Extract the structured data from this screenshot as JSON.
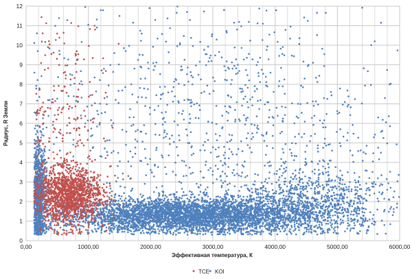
{
  "chart_data": {
    "type": "scatter",
    "title": "",
    "xlabel": "Эффективная температура, К",
    "ylabel": "Радиус, R Земли",
    "xlim": [
      0,
      6000
    ],
    "ylim": [
      0,
      12
    ],
    "x_tick_labels": [
      "0,00",
      "1000,00",
      "2000,00",
      "3000,00",
      "4000,00",
      "5000,00",
      "6000,00"
    ],
    "y_tick_labels": [
      "0",
      "1",
      "2",
      "3",
      "4",
      "5",
      "6",
      "7",
      "8",
      "9",
      "10",
      "11",
      "12"
    ],
    "grid": true,
    "legend_position": "bottom",
    "series": [
      {
        "name": "TCE",
        "color": "#c0504d",
        "sample_points": [
          [
            400,
            2.6
          ],
          [
            550,
            2.2
          ],
          [
            650,
            2.9
          ],
          [
            720,
            2.4
          ],
          [
            800,
            1.9
          ],
          [
            300,
            3.1
          ],
          [
            600,
            3.4
          ],
          [
            900,
            2.0
          ],
          [
            1000,
            1.7
          ],
          [
            450,
            4.2
          ],
          [
            700,
            5.5
          ],
          [
            350,
            6.8
          ],
          [
            800,
            9.5
          ],
          [
            500,
            10.6
          ],
          [
            1100,
            11.0
          ],
          [
            1200,
            1.5
          ],
          [
            1400,
            1.3
          ],
          [
            650,
            1.4
          ]
        ],
        "distribution": [
          {
            "x_mean": 700,
            "x_sd": 260,
            "y_mean": 2.3,
            "y_sd": 0.7,
            "n": 1400
          },
          {
            "x_mean": 650,
            "x_sd": 320,
            "y_mean": 5.5,
            "y_sd": 3.0,
            "n": 260
          }
        ]
      },
      {
        "name": "KOI",
        "color": "#4f81bd",
        "sample_points": [
          [
            200,
            1.9
          ],
          [
            1800,
            1.2
          ],
          [
            2200,
            1.0
          ],
          [
            3000,
            1.3
          ],
          [
            3800,
            1.6
          ],
          [
            4500,
            2.2
          ],
          [
            5200,
            3.0
          ],
          [
            5700,
            4.5
          ],
          [
            2600,
            5.0
          ],
          [
            900,
            8.0
          ],
          [
            3400,
            9.0
          ],
          [
            1500,
            11.5
          ],
          [
            5600,
            10.2
          ],
          [
            4200,
            0.8
          ],
          [
            2800,
            2.5
          ]
        ],
        "distribution": [
          {
            "x_mean": 2600,
            "x_sd": 1000,
            "y_mean": 1.3,
            "y_sd": 0.45,
            "n": 4200
          },
          {
            "x_mean": 200,
            "x_sd": 70,
            "y_mean": 2.2,
            "y_sd": 1.4,
            "n": 900
          },
          {
            "x_mean": 4600,
            "x_sd": 650,
            "y_mean": 2.0,
            "y_sd": 0.9,
            "n": 900
          },
          {
            "x_mean": 3000,
            "x_sd": 1500,
            "y_mean": 6.0,
            "y_sd": 3.4,
            "n": 1000
          }
        ]
      }
    ]
  }
}
